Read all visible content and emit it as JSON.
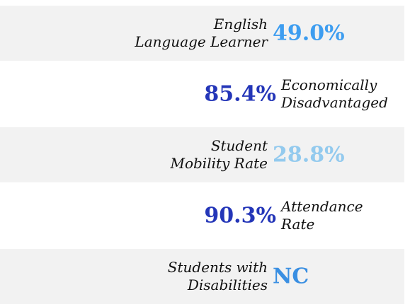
{
  "rows": [
    {
      "label": [
        "English",
        "Language Learner"
      ],
      "value": "49.0%",
      "color": "#3d9df0",
      "shaded": true
    },
    {
      "label": [
        "Economically",
        "Disadvantaged"
      ],
      "value": "85.4%",
      "color": "#2436b8",
      "shaded": false
    },
    {
      "label": [
        "Student",
        "Mobility Rate"
      ],
      "value": "28.8%",
      "color": "#93caee",
      "shaded": true
    },
    {
      "label": [
        "Attendance",
        "Rate"
      ],
      "value": "90.3%",
      "color": "#2436b8",
      "shaded": false
    },
    {
      "label": [
        "Students with",
        "Disabilities"
      ],
      "value": "NC",
      "color": "#3a8fe2",
      "shaded": true
    }
  ]
}
